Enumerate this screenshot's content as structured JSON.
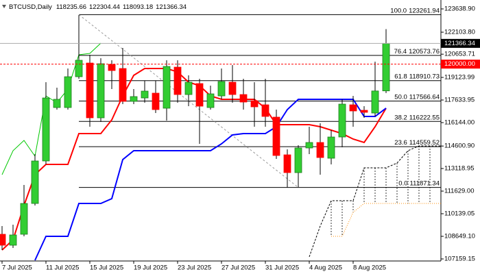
{
  "chart_data": {
    "type": "candlestick",
    "symbol": "BTCUSD,Daily",
    "categories": [
      "7 Jul 2025",
      null,
      null,
      null,
      "11 Jul 2025",
      null,
      null,
      null,
      "15 Jul 2025",
      null,
      null,
      null,
      "19 Jul 2025",
      null,
      null,
      null,
      "23 Jul 2025",
      null,
      null,
      null,
      "27 Jul 2025",
      null,
      null,
      null,
      "31 Jul 2025",
      null,
      null,
      null,
      "4 Aug 2025",
      null,
      null,
      null,
      "8 Aug 2025",
      null,
      null,
      null,
      null,
      null,
      null,
      null,
      null
    ],
    "open": [
      108785,
      108062,
      108785,
      110816,
      113616,
      117138,
      117138,
      119169,
      120072,
      116460,
      119982,
      119711,
      117544,
      117770,
      118086,
      117093,
      119801,
      117995,
      118718,
      117138,
      117905,
      118808,
      117995,
      117589,
      117318,
      116506,
      114022,
      112848,
      114474,
      114835,
      113797,
      115196,
      117318,
      116957,
      116776,
      118235.66,
      null,
      null,
      null,
      null,
      null
    ],
    "high": [
      109327,
      109417,
      112035,
      114068,
      118808,
      118447,
      119711,
      123230,
      120614,
      120388,
      120253,
      121066,
      118357,
      118898,
      118898,
      120253,
      120253,
      119260,
      119034,
      118582,
      119711,
      119937,
      119034,
      118808,
      119034,
      117002,
      114384,
      114654,
      115873,
      116099,
      115648,
      117680,
      117905,
      117228,
      120162,
      122304.44,
      null,
      null,
      null,
      null,
      null
    ],
    "low": [
      107746,
      107882,
      108650,
      110681,
      113390,
      117002,
      117002,
      119034,
      115873,
      116189,
      118357,
      117363,
      117363,
      117454,
      116776,
      116280,
      117454,
      117228,
      114745,
      117002,
      117680,
      117454,
      117002,
      115873,
      115873,
      113751,
      111880,
      111900,
      114068,
      112713,
      113390,
      114519,
      115873,
      116460,
      116551,
      118093.18,
      null,
      null,
      null,
      null,
      null
    ],
    "close": [
      108062,
      108740,
      110816,
      113616,
      117770,
      117680,
      119169,
      120253,
      116460,
      120027,
      119576,
      117544,
      117860,
      118221,
      117002,
      119846,
      117995,
      118808,
      117228,
      118040,
      118853,
      117995,
      117499,
      117183,
      116551,
      113977,
      112848,
      114474,
      114835,
      113842,
      115196,
      117363,
      116912,
      116822,
      118230,
      121366.34,
      null,
      null,
      null,
      null,
      null
    ],
    "up_color": "#32cd32",
    "down_color": "#ff0000",
    "series": [
      {
        "color": "#ff0000",
        "style": "solid",
        "values": [
          107746,
          108423,
          110681,
          112713,
          113390,
          113390,
          113390,
          115422,
          115422,
          115422,
          116325,
          117905,
          119260,
          119711,
          119711,
          119711,
          119485,
          118808,
          118582,
          117905,
          117680,
          117680,
          117680,
          117680,
          117093,
          116009,
          116009,
          116009,
          116009,
          115873,
          115648,
          115422,
          115061,
          114835,
          115873,
          117093,
          null,
          null,
          null,
          null,
          null
        ]
      },
      {
        "color": "#0000ff",
        "style": "solid",
        "values": [
          null,
          null,
          null,
          107069,
          108650,
          108650,
          108650,
          110816,
          110816,
          110816,
          111132,
          113706,
          114293,
          114293,
          114293,
          114293,
          114293,
          114293,
          114293,
          114293,
          114745,
          115331,
          115422,
          115422,
          115422,
          115873,
          117002,
          117680,
          117680,
          117680,
          117680,
          117680,
          117680,
          116551,
          116551,
          117093,
          null,
          null,
          null,
          null,
          null
        ]
      },
      {
        "color": "#00c800",
        "style": "thin",
        "values": [
          112713,
          114293,
          114970,
          113932,
          117905,
          117454,
          118357,
          120614,
          120704,
          121382,
          null,
          null,
          null,
          null,
          null,
          null,
          null,
          null,
          null,
          null,
          null,
          null,
          null,
          null,
          null,
          null,
          null,
          null,
          null,
          null,
          null,
          null,
          null,
          null,
          null,
          null,
          null,
          null,
          null,
          null,
          null
        ]
      },
      {
        "color": "#000000",
        "style": "dashed",
        "values": [
          null,
          null,
          null,
          null,
          null,
          null,
          null,
          null,
          null,
          null,
          null,
          null,
          null,
          null,
          null,
          null,
          null,
          null,
          null,
          null,
          null,
          null,
          null,
          null,
          null,
          null,
          null,
          null,
          107295,
          109327,
          110997,
          110997,
          110997,
          113164,
          113164,
          113164,
          113480,
          114293,
          114609,
          114609,
          114609
        ]
      },
      {
        "color": "#ff8c00",
        "style": "dotted",
        "values": [
          null,
          null,
          null,
          null,
          null,
          null,
          null,
          null,
          null,
          null,
          null,
          null,
          null,
          null,
          null,
          null,
          null,
          null,
          null,
          null,
          null,
          null,
          null,
          null,
          null,
          null,
          null,
          null,
          null,
          null,
          108650,
          108650,
          110229,
          110816,
          110816,
          110816,
          110816,
          110816,
          110816,
          110816,
          110816
        ]
      }
    ],
    "fib": {
      "color": "#000000",
      "ratios": [
        "100.0",
        "76.4",
        "61.8",
        "50.0",
        "38.2",
        "23.6",
        "0.0"
      ],
      "values": [
        123261.94,
        120573.76,
        118910.73,
        117566.64,
        116222.55,
        114559.52,
        111871.34
      ]
    },
    "level": {
      "value": 120000,
      "label": "120000.00",
      "color": "#ff0000"
    },
    "ylim": [
      107069,
      124226
    ],
    "yticks": [
      {
        "value": 123638.9,
        "label": "123638.90"
      },
      {
        "value": 122103.8,
        "label": "122103.80"
      },
      120653.71,
      119123.99,
      117633.95,
      {
        "value": 116144,
        "label": "116144.00"
      },
      {
        "value": 114600.9,
        "label": "114600.90"
      },
      113118.95,
      {
        "value": 111629,
        "label": "111629.00"
      },
      110139.05,
      {
        "value": 108649.1,
        "label": "108649.10"
      },
      107159.15
    ]
  }
}
